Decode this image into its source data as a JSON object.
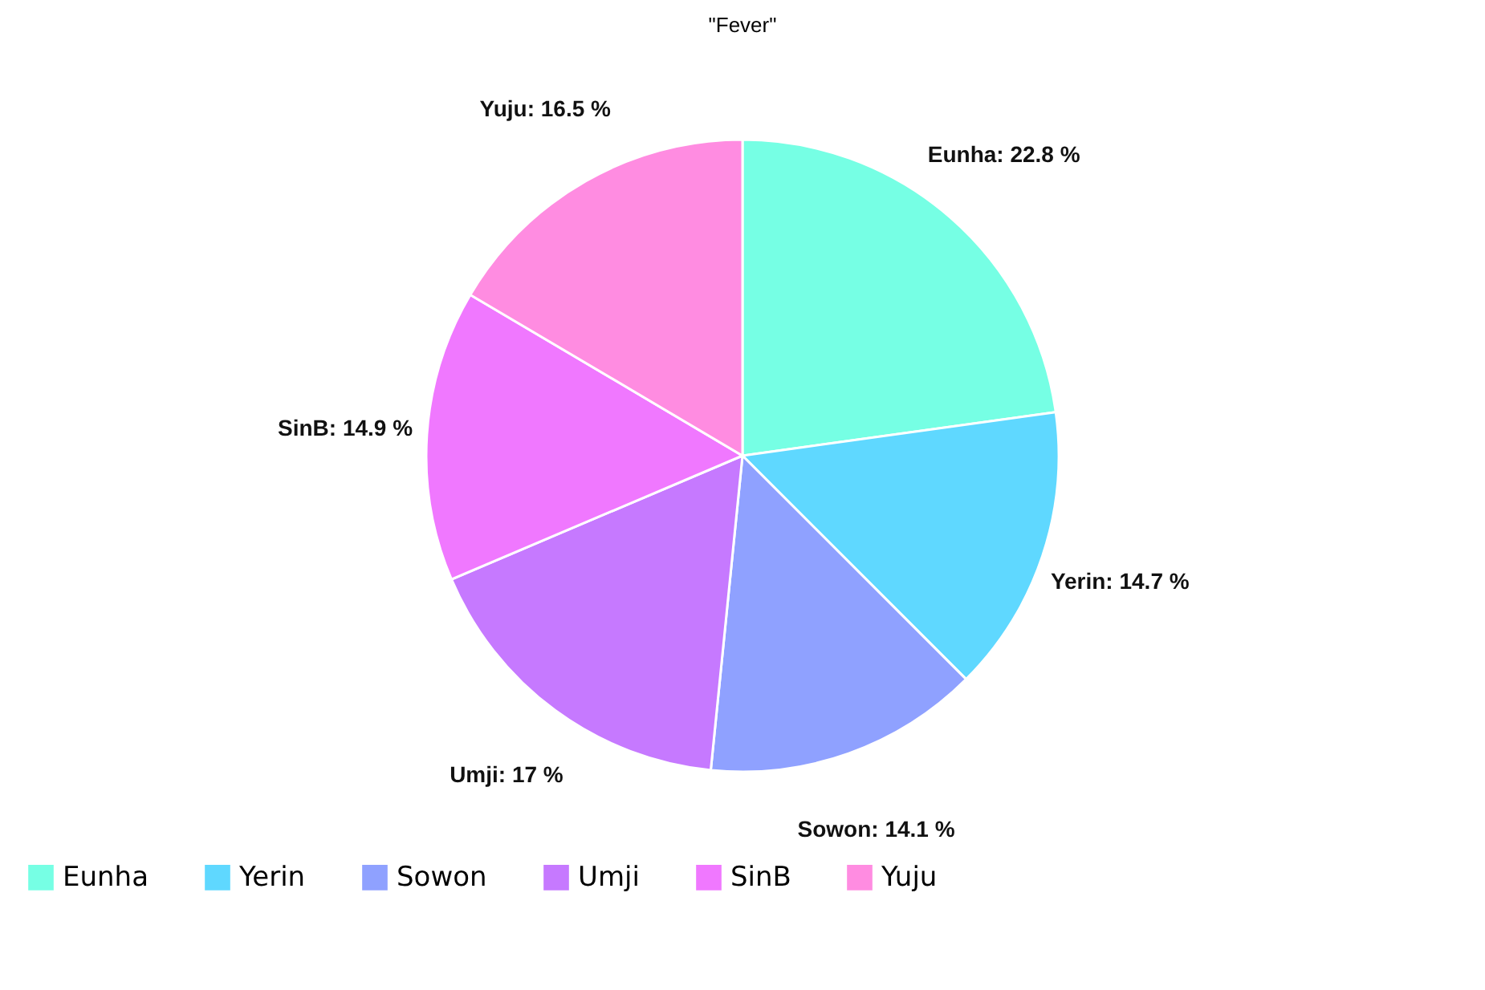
{
  "chart_data": {
    "type": "pie",
    "title": "\"Fever\"",
    "categories": [
      "Eunha",
      "Yerin",
      "Sowon",
      "Umji",
      "SinB",
      "Yuju"
    ],
    "values": [
      22.8,
      14.7,
      14.1,
      17,
      14.9,
      16.5
    ],
    "colors": [
      "#76ffe4",
      "#5fd8ff",
      "#8fa1ff",
      "#c679ff",
      "#f078ff",
      "#ff8ce1"
    ],
    "value_labels": [
      "Eunha: 22.8 %",
      "Yerin: 14.7 %",
      "Sowon: 14.1 %",
      "Umji: 17 %",
      "SinB: 14.9 %",
      "Yuju: 16.5 %"
    ],
    "legend": "bottom"
  }
}
